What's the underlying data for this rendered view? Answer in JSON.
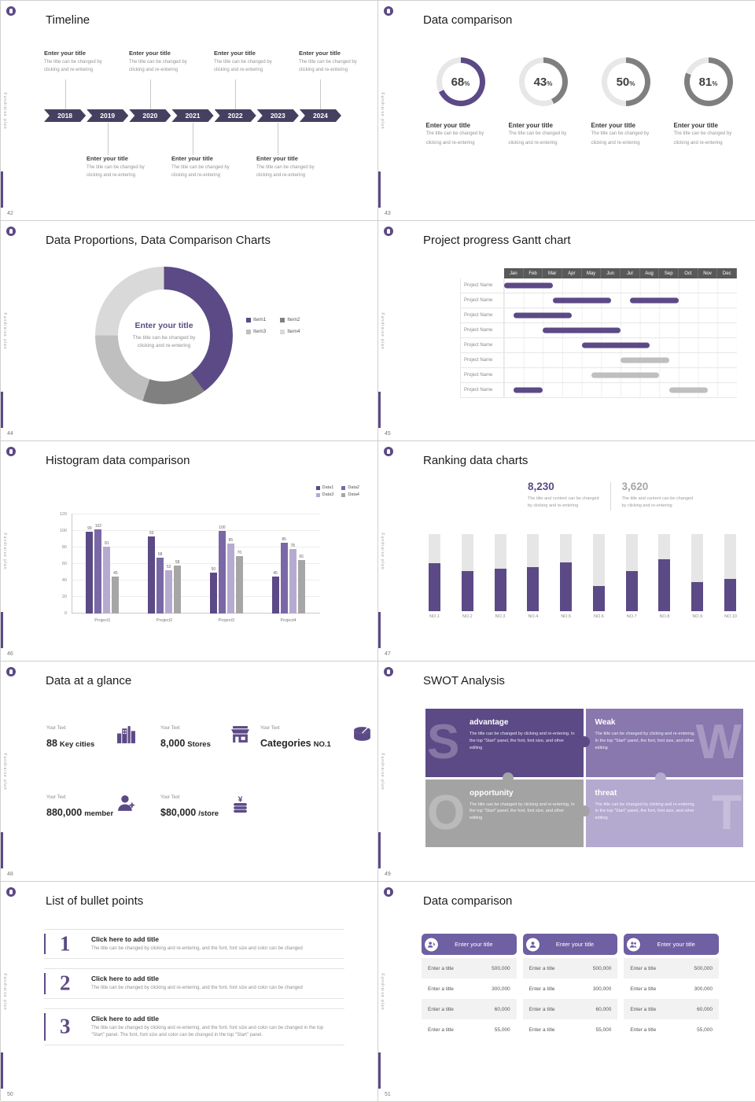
{
  "theme": {
    "purple": "#5b4a86",
    "purple_dark": "#454060",
    "purple_mid": "#8878ae",
    "purple_light": "#b4a9cf",
    "gray": "#a6a6a6",
    "gray_dark": "#595959",
    "track": "#e6e6e6",
    "card_header": "#6f5fa3"
  },
  "chrome": {
    "brand_vertical": "Fundraise plan"
  },
  "slides": [
    {
      "id": "timeline",
      "number": "42",
      "title": "Timeline",
      "years": [
        "2018",
        "2019",
        "2020",
        "2021",
        "2022",
        "2023",
        "2024"
      ],
      "top_positions": [
        0,
        2,
        4,
        6
      ],
      "bottom_positions": [
        1,
        3,
        5
      ],
      "entry_title": "Enter your title",
      "entry_desc_l1": "The title can be changed by",
      "entry_desc_l2": "clicking and re-entering"
    },
    {
      "id": "rings",
      "number": "43",
      "title": "Data comparison",
      "items": [
        {
          "pct": 68,
          "color": "#5b4a86"
        },
        {
          "pct": 43,
          "color": "#7f7f7f"
        },
        {
          "pct": 50,
          "color": "#7f7f7f"
        },
        {
          "pct": 81,
          "color": "#7f7f7f"
        }
      ],
      "entry_title": "Enter your title",
      "entry_desc_l1": "The title can be changed by",
      "entry_desc_l2": "clicking and re-entering"
    },
    {
      "id": "donut",
      "number": "44",
      "title": "Data Proportions, Data Comparison Charts",
      "center_title": "Enter your title",
      "center_desc_l1": "The title can be changed by",
      "center_desc_l2": "clicking and re-entering",
      "segments": [
        {
          "label": "Item1",
          "value": 40,
          "color": "#5b4a86"
        },
        {
          "label": "Item2",
          "value": 15,
          "color": "#808080"
        },
        {
          "label": "Item3",
          "value": 20,
          "color": "#bfbfbf"
        },
        {
          "label": "Item4",
          "value": 25,
          "color": "#d9d9d9"
        }
      ]
    },
    {
      "id": "gantt",
      "number": "45",
      "title": "Project progress Gantt chart",
      "months": [
        "Jan",
        "Feb",
        "Mar",
        "Apr",
        "May",
        "Jun",
        "Jul",
        "Aug",
        "Sep",
        "Oct",
        "Nov",
        "Dec"
      ],
      "row_label": "Project Name",
      "rows": [
        [
          {
            "s": 0,
            "e": 2.5,
            "c": "#5b4a86"
          }
        ],
        [
          {
            "s": 2.5,
            "e": 5.5,
            "c": "#5b4a86"
          },
          {
            "s": 6.5,
            "e": 9,
            "c": "#5b4a86"
          }
        ],
        [
          {
            "s": 0.5,
            "e": 3.5,
            "c": "#5b4a86"
          }
        ],
        [
          {
            "s": 2,
            "e": 6,
            "c": "#5b4a86"
          }
        ],
        [
          {
            "s": 4,
            "e": 7.5,
            "c": "#5b4a86"
          }
        ],
        [
          {
            "s": 6,
            "e": 8.5,
            "c": "#bfbfbf"
          }
        ],
        [
          {
            "s": 4.5,
            "e": 8,
            "c": "#bfbfbf"
          }
        ],
        [
          {
            "s": 0.5,
            "e": 2,
            "c": "#5b4a86"
          },
          {
            "s": 8.5,
            "e": 10.5,
            "c": "#bfbfbf"
          }
        ]
      ]
    },
    {
      "id": "histogram",
      "number": "46",
      "title": "Histogram data comparison",
      "ymax": 120,
      "yticks": [
        0,
        20,
        40,
        60,
        80,
        100,
        120
      ],
      "categories": [
        "Project1",
        "Project2",
        "Project3",
        "Project4"
      ],
      "series": [
        {
          "name": "Data1",
          "color": "#5b4a86",
          "values": [
            99,
            93,
            50,
            45
          ]
        },
        {
          "name": "Data2",
          "color": "#7a68a6",
          "values": [
            102,
            68,
            100,
            86
          ]
        },
        {
          "name": "Data3",
          "color": "#b6aad1",
          "values": [
            81,
            52,
            85,
            78
          ]
        },
        {
          "name": "Data4",
          "color": "#a6a6a6",
          "values": [
            45,
            58,
            70,
            65
          ]
        }
      ]
    },
    {
      "id": "ranking",
      "number": "47",
      "title": "Ranking data charts",
      "stat1": {
        "value": "8,230",
        "desc_l1": "The title and content can be changed",
        "desc_l2": "by clicking and re-entering"
      },
      "stat2": {
        "value": "3,620",
        "desc_l1": "The title and content can be changed",
        "desc_l2": "by clicking and re-entering"
      },
      "bars": {
        "labels": [
          "NO.1",
          "NO.2",
          "NO.3",
          "NO.4",
          "NO.5",
          "NO.6",
          "NO.7",
          "NO.8",
          "NO.9",
          "NO.10"
        ],
        "fill_pct": [
          62,
          52,
          55,
          57,
          63,
          33,
          52,
          67,
          38,
          42
        ]
      }
    },
    {
      "id": "glance",
      "number": "48",
      "title": "Data at a glance",
      "items": [
        {
          "icon": "city-buildings-icon",
          "label": "Your Text",
          "big": "88",
          "unit": "Key cities"
        },
        {
          "icon": "store-icon",
          "label": "Your Text",
          "big": "8,000",
          "unit": "Stores"
        },
        {
          "icon": "cheese-wheel-icon",
          "label": "Your Text",
          "big": "Categories",
          "unit": "NO.1"
        },
        {
          "icon": "member-icon",
          "label": "Your Text",
          "big": "880,000",
          "unit": "member"
        },
        {
          "icon": "coins-icon",
          "label": "Your Text",
          "big": "$80,000",
          "unit": "/store"
        }
      ]
    },
    {
      "id": "swot",
      "number": "49",
      "title": "SWOT Analysis",
      "desc": "The title can be changed by clicking and re-entering. In the top \"Start\" panel, the font, font size, and other editing",
      "quads": [
        {
          "letter": "S",
          "label": "advantage",
          "color": "#5b4a86",
          "side": "left"
        },
        {
          "letter": "W",
          "label": "Weak",
          "color": "#8878ae",
          "side": "right"
        },
        {
          "letter": "O",
          "label": "opportunity",
          "color": "#a3a3a3",
          "side": "left"
        },
        {
          "letter": "T",
          "label": "threat",
          "color": "#b4a9cf",
          "side": "right"
        }
      ]
    },
    {
      "id": "bullets",
      "number": "50",
      "title": "List of bullet points",
      "items": [
        {
          "num": "1",
          "title": "Click here to add title",
          "desc": "The title can be changed by clicking and re-entering, and the font, font size and color can be changed"
        },
        {
          "num": "2",
          "title": "Click here to add title",
          "desc": "The title can be changed by clicking and re-entering, and the font, font size and color can be changed"
        },
        {
          "num": "3",
          "title": "Click here to add title",
          "desc": "The title can be changed by clicking and re-entering, and the font, font size and color can be changed in the top \"Start\" panel. The font, font size and color can be changed in the top \"Start\" panel."
        }
      ]
    },
    {
      "id": "cards",
      "number": "51",
      "title": "Data comparison",
      "card_title": "Enter your title",
      "card_icons": [
        "report-person-icon",
        "person-icon",
        "people-icon"
      ],
      "rows": [
        {
          "label": "Enter a title",
          "value": "500,000"
        },
        {
          "label": "Enter a title",
          "value": "300,000"
        },
        {
          "label": "Enter a title",
          "value": "60,000"
        },
        {
          "label": "Enter a title",
          "value": "55,000"
        }
      ]
    }
  ],
  "chart_data": [
    {
      "type": "pie",
      "subtype": "progress-rings",
      "title": "Data comparison",
      "values": [
        68,
        43,
        50,
        81
      ],
      "unit": "%"
    },
    {
      "type": "pie",
      "subtype": "donut",
      "title": "Data Proportions, Data Comparison Charts",
      "labels": [
        "Item1",
        "Item2",
        "Item3",
        "Item4"
      ],
      "values": [
        40,
        15,
        20,
        25
      ]
    },
    {
      "type": "bar",
      "subtype": "gantt",
      "title": "Project progress Gantt chart",
      "x_labels": [
        "Jan",
        "Feb",
        "Mar",
        "Apr",
        "May",
        "Jun",
        "Jul",
        "Aug",
        "Sep",
        "Oct",
        "Nov",
        "Dec"
      ],
      "row_label": "Project Name",
      "bars_month_ranges": [
        [
          [
            0,
            2.5
          ]
        ],
        [
          [
            2.5,
            5.5
          ],
          [
            6.5,
            9
          ]
        ],
        [
          [
            0.5,
            3.5
          ]
        ],
        [
          [
            2,
            6
          ]
        ],
        [
          [
            4,
            7.5
          ]
        ],
        [
          [
            6,
            8.5
          ]
        ],
        [
          [
            4.5,
            8
          ]
        ],
        [
          [
            0.5,
            2
          ],
          [
            8.5,
            10.5
          ]
        ]
      ]
    },
    {
      "type": "bar",
      "title": "Histogram data comparison",
      "categories": [
        "Project1",
        "Project2",
        "Project3",
        "Project4"
      ],
      "series": [
        {
          "name": "Data1",
          "values": [
            99,
            93,
            50,
            45
          ]
        },
        {
          "name": "Data2",
          "values": [
            102,
            68,
            100,
            86
          ]
        },
        {
          "name": "Data3",
          "values": [
            81,
            52,
            85,
            78
          ]
        },
        {
          "name": "Data4",
          "values": [
            45,
            58,
            70,
            65
          ]
        }
      ],
      "ylim": [
        0,
        120
      ],
      "legend_position": "top-right",
      "grid": true
    },
    {
      "type": "bar",
      "subtype": "fill-ranking",
      "title": "Ranking data charts",
      "categories": [
        "NO.1",
        "NO.2",
        "NO.3",
        "NO.4",
        "NO.5",
        "NO.6",
        "NO.7",
        "NO.8",
        "NO.9",
        "NO.10"
      ],
      "values": [
        62,
        52,
        55,
        57,
        63,
        33,
        52,
        67,
        38,
        42
      ],
      "unit": "% of track filled",
      "callouts": [
        "8,230",
        "3,620"
      ]
    }
  ]
}
